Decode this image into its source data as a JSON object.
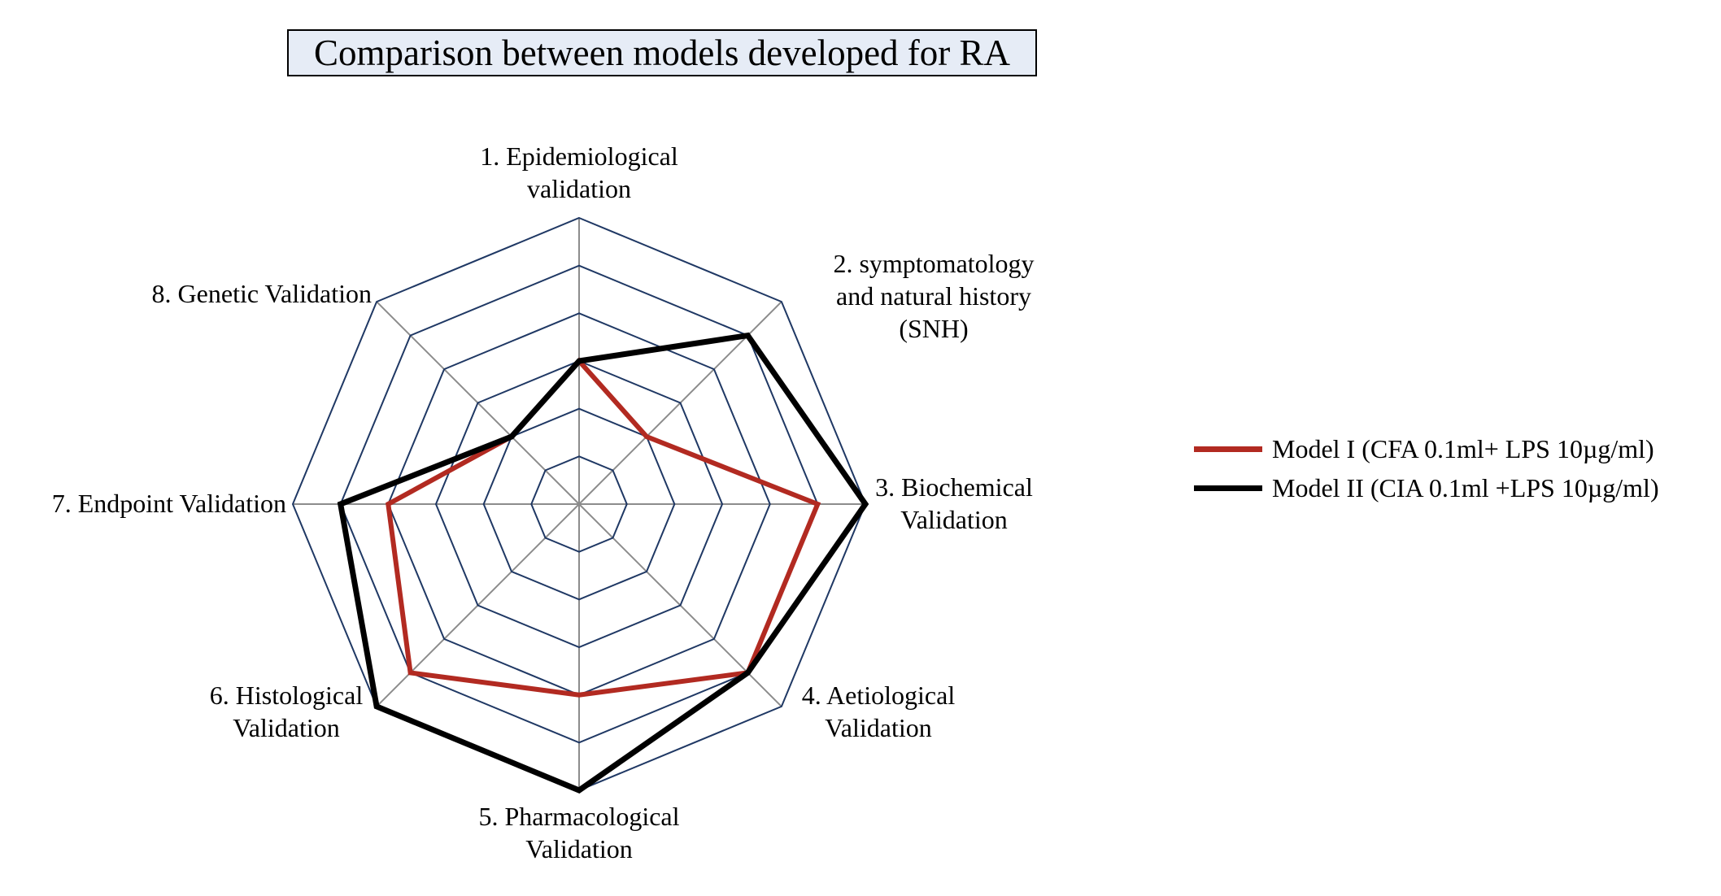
{
  "chart_data": {
    "type": "radar",
    "title": "Comparison between models developed for RA",
    "categories": [
      "1. Epidemiological validation",
      "2. symptomatology and natural history (SNH)",
      "3. Biochemical Validation",
      "4. Aetiological Validation",
      "5. Pharmacological Validation",
      "6. Histological Validation",
      "7. Endpoint Validation",
      "8. Genetic Validation"
    ],
    "category_lines": [
      [
        "1. Epidemiological",
        "validation"
      ],
      [
        "2. symptomatology",
        "and natural history",
        "(SNH)"
      ],
      [
        "3. Biochemical",
        "Validation"
      ],
      [
        "4. Aetiological",
        "Validation"
      ],
      [
        "5. Pharmacological",
        "Validation"
      ],
      [
        "6. Histological",
        "Validation"
      ],
      [
        "7. Endpoint Validation"
      ],
      [
        "8. Genetic Validation"
      ]
    ],
    "rmax": 6,
    "rings": [
      1,
      2,
      3,
      4,
      5,
      6
    ],
    "grid": true,
    "legend_position": "right",
    "series": [
      {
        "name": "Model I (CFA 0.1ml+ LPS 10µg/ml)",
        "color": "#b22a21",
        "values": [
          3,
          2,
          5,
          5,
          4,
          5,
          4,
          2
        ]
      },
      {
        "name": "Model II (CIA 0.1ml +LPS 10µg/ml)",
        "color": "#000000",
        "values": [
          3,
          5,
          6,
          5,
          6,
          6,
          5,
          2
        ]
      }
    ]
  },
  "colors": {
    "ring": "#1f3864",
    "spoke": "#8c8c8c",
    "title_background": "#e6ecf6"
  }
}
